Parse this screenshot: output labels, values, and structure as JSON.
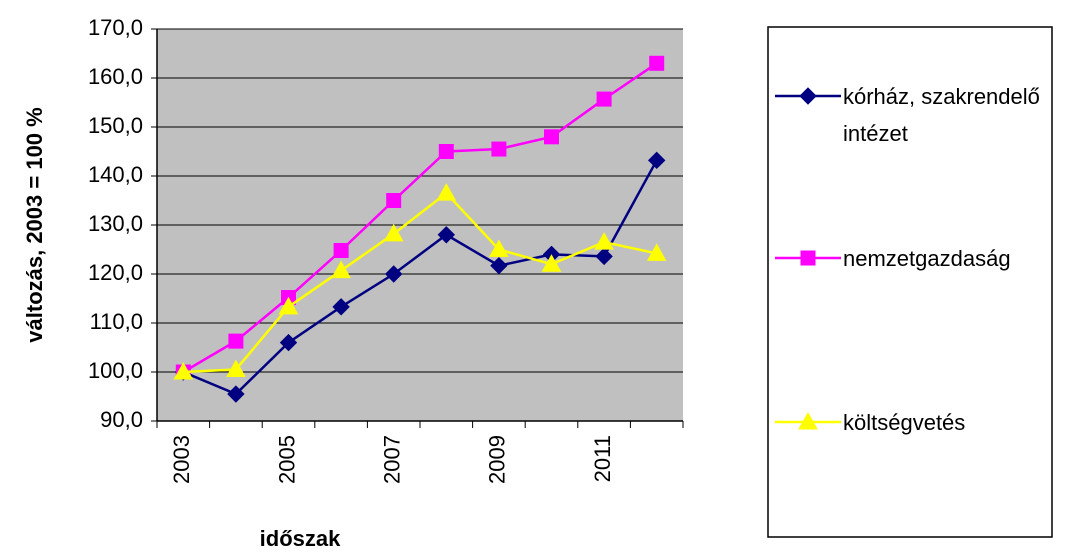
{
  "chart_data": {
    "type": "line",
    "x_label": "időszak",
    "y_label": "változás, 2003 = 100 %",
    "categories": [
      "2003",
      null,
      "2005",
      null,
      "2007",
      null,
      "2009",
      null,
      "2011",
      null
    ],
    "series": [
      {
        "name": "kórház, szakrendelő intézet",
        "color": "#000080",
        "marker": "diamond",
        "values": [
          100,
          95.5,
          106,
          113.3,
          120,
          128,
          121.7,
          124,
          123.6,
          143.2
        ]
      },
      {
        "name": "nemzetgazdaság",
        "color": "#ff00ff",
        "marker": "square",
        "values": [
          100,
          106.3,
          115.2,
          124.8,
          135,
          145,
          145.5,
          148,
          155.7,
          163
        ]
      },
      {
        "name": "költségvetés",
        "color": "#ffff00",
        "marker": "triangle",
        "values": [
          100,
          100.5,
          113.3,
          120.7,
          128.2,
          136.5,
          125,
          122,
          126.5,
          124.2
        ]
      }
    ],
    "ylim": [
      90,
      170
    ],
    "yticks": [
      {
        "value": 90,
        "label": "90,0"
      },
      {
        "value": 100,
        "label": "100,0"
      },
      {
        "value": 110,
        "label": "110,0"
      },
      {
        "value": 120,
        "label": "120,0"
      },
      {
        "value": 130,
        "label": "130,0"
      },
      {
        "value": 140,
        "label": "140,0"
      },
      {
        "value": 150,
        "label": "150,0"
      },
      {
        "value": 160,
        "label": "160,0"
      },
      {
        "value": 170,
        "label": "170,0"
      }
    ],
    "grid": true,
    "legend": "right"
  }
}
